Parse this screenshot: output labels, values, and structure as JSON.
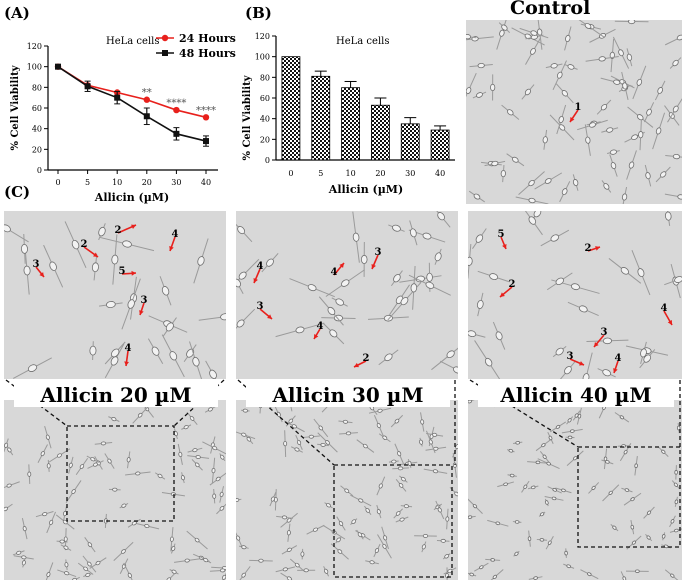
{
  "figure": {
    "panel_a_letter": "(A)",
    "panel_b_letter": "(B)",
    "panel_c_letter": "(C)",
    "control_title": "Control",
    "captions": [
      "Allicin 20 µM",
      "Allicin 30 µM",
      "Allicin 40 µM"
    ]
  },
  "colors": {
    "series_24h": "#e8201c",
    "series_48h": "#111111",
    "arrow": "#e8201c"
  },
  "chart_data": [
    {
      "type": "line",
      "panel": "A",
      "title": "HeLa cells",
      "xlabel": "Allicin (µM)",
      "ylabel": "% Cell Viability",
      "x": [
        0,
        5,
        10,
        20,
        30,
        40
      ],
      "ylim": [
        0,
        120
      ],
      "yticks": [
        0,
        20,
        40,
        60,
        80,
        100,
        120
      ],
      "series": [
        {
          "name": "24 Hours",
          "color": "#e8201c",
          "values": [
            100,
            82,
            75,
            68,
            58,
            51
          ]
        },
        {
          "name": "48 Hours",
          "color": "#111111",
          "values": [
            100,
            81,
            70,
            52,
            35,
            28
          ],
          "errors": [
            2,
            5,
            6,
            8,
            6,
            5
          ]
        }
      ],
      "annotations": [
        {
          "x": 20,
          "text": "**"
        },
        {
          "x": 30,
          "text": "****"
        },
        {
          "x": 40,
          "text": "****"
        }
      ],
      "legend": "top-right"
    },
    {
      "type": "bar",
      "panel": "B",
      "title": "HeLa cells",
      "xlabel": "Allicin (µM)",
      "ylabel": "% Cell Viability",
      "categories": [
        "0",
        "5",
        "10",
        "20",
        "30",
        "40"
      ],
      "values": [
        100,
        81,
        70,
        53,
        35,
        29
      ],
      "errors": [
        0,
        5,
        6,
        7,
        6,
        4
      ],
      "ylim": [
        0,
        120
      ],
      "yticks": [
        0,
        20,
        40,
        60,
        80,
        100,
        120
      ]
    }
  ],
  "micrographs": {
    "control_labels": [
      "1"
    ],
    "c20_labels": [
      "2",
      "4",
      "3",
      "2",
      "5",
      "3",
      "4"
    ],
    "c30_labels": [
      "4",
      "3",
      "4",
      "3",
      "4",
      "2"
    ],
    "c40_labels": [
      "5",
      "2",
      "2",
      "4",
      "3",
      "3",
      "4"
    ]
  }
}
